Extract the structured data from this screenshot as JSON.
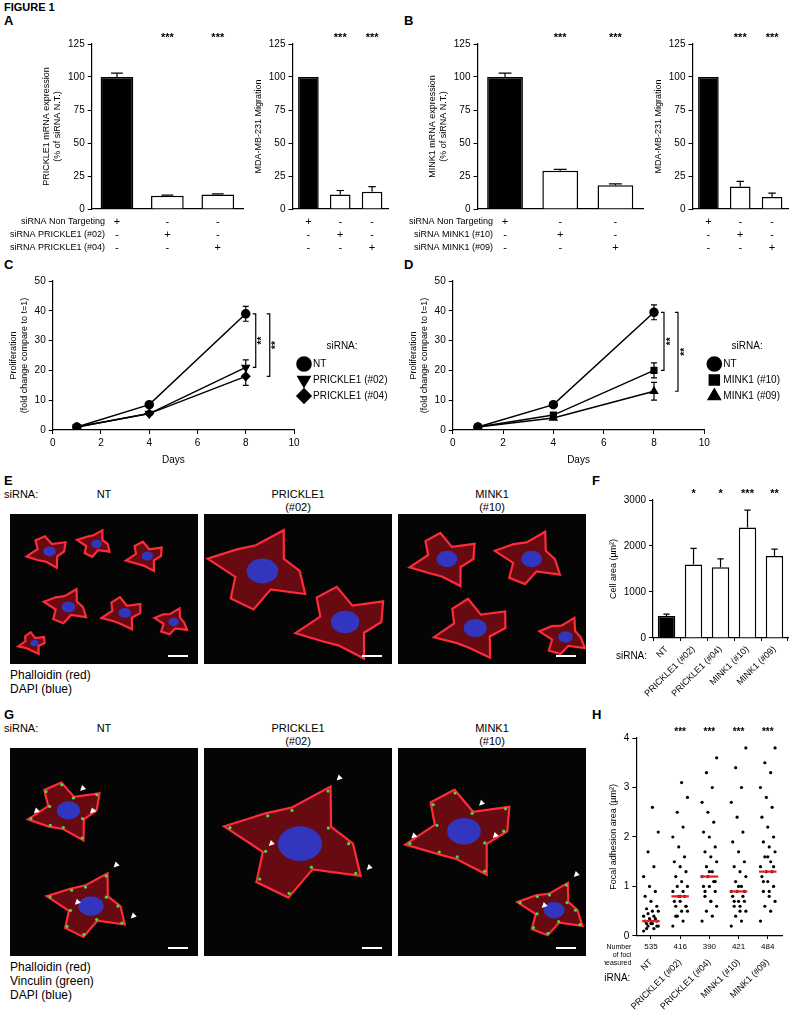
{
  "title": "FIGURE 1",
  "chart_data": [
    {
      "panel": "A",
      "type": "bar",
      "y_label": [
        "PRICKLE1 mRNA expression",
        "(% of siRNA N.T.)"
      ],
      "categories": [
        null,
        null,
        null
      ],
      "values": [
        100,
        10,
        11
      ],
      "errors": [
        3,
        0.5,
        0.5
      ],
      "colors": [
        "#000000",
        "#ffffff",
        "#ffffff"
      ],
      "ylim": [
        0,
        125
      ],
      "yticks": [
        0,
        25,
        50,
        75,
        100,
        125
      ],
      "grid": false,
      "tick_labels": "y",
      "significance": [
        null,
        "***",
        "***"
      ],
      "condition_table": {
        "rows": [
          {
            "label": "siRNA Non Targeting",
            "marks": [
              "+",
              "-",
              "-"
            ]
          },
          {
            "label": "siRNA PRICKLE1 (#02)",
            "marks": [
              "-",
              "+",
              "-"
            ]
          },
          {
            "label": "siRNA PRICKLE1 (#04)",
            "marks": [
              "-",
              "-",
              "+"
            ]
          }
        ]
      }
    },
    {
      "panel": "A",
      "type": "bar",
      "y_label": "MDA-MB-231 Migration",
      "categories": [
        null,
        null,
        null
      ],
      "values": [
        100,
        11,
        13
      ],
      "errors": [
        0,
        3,
        4
      ],
      "colors": [
        "#000000",
        "#ffffff",
        "#ffffff"
      ],
      "ylim": [
        0,
        125
      ],
      "yticks": [
        0,
        25,
        50,
        75,
        100,
        125
      ],
      "grid": false,
      "tick_labels": "y",
      "significance": [
        null,
        "***",
        "***"
      ],
      "condition_table": {
        "rows": [
          {
            "label": null,
            "marks": [
              "+",
              "-",
              "-"
            ]
          },
          {
            "label": null,
            "marks": [
              "-",
              "+",
              "-"
            ]
          },
          {
            "label": null,
            "marks": [
              "-",
              "-",
              "+"
            ]
          }
        ]
      }
    },
    {
      "panel": "B",
      "type": "bar",
      "y_label": [
        "MINK1 mRNA expression",
        "(% of siRNA N.T.)"
      ],
      "categories": [
        null,
        null,
        null
      ],
      "values": [
        100,
        29,
        18
      ],
      "errors": [
        3,
        1,
        1
      ],
      "colors": [
        "#000000",
        "#ffffff",
        "#ffffff"
      ],
      "ylim": [
        0,
        125
      ],
      "yticks": [
        0,
        25,
        50,
        75,
        100,
        125
      ],
      "grid": false,
      "tick_labels": "y",
      "significance": [
        null,
        "***",
        "***"
      ],
      "condition_table": {
        "rows": [
          {
            "label": "siRNA Non Targeting",
            "marks": [
              "+",
              "-",
              "-"
            ]
          },
          {
            "label": "siRNA MINK1 (#10)",
            "marks": [
              "-",
              "+",
              "-"
            ]
          },
          {
            "label": "siRNA MINK1 (#09)",
            "marks": [
              "-",
              "-",
              "+"
            ]
          }
        ]
      }
    },
    {
      "panel": "B",
      "type": "bar",
      "y_label": "MDA-MB-231 Migration",
      "categories": [
        null,
        null,
        null
      ],
      "values": [
        100,
        17,
        9
      ],
      "errors": [
        0,
        4,
        3
      ],
      "colors": [
        "#000000",
        "#ffffff",
        "#ffffff"
      ],
      "ylim": [
        0,
        125
      ],
      "yticks": [
        0,
        25,
        50,
        75,
        100,
        125
      ],
      "grid": false,
      "tick_labels": "y",
      "significance": [
        null,
        "***",
        "***"
      ],
      "condition_table": {
        "rows": [
          {
            "label": null,
            "marks": [
              "+",
              "-",
              "-"
            ]
          },
          {
            "label": null,
            "marks": [
              "-",
              "+",
              "-"
            ]
          },
          {
            "label": null,
            "marks": [
              "-",
              "-",
              "+"
            ]
          }
        ]
      }
    },
    {
      "panel": "C",
      "type": "line",
      "x_label": "Days",
      "y_label": [
        "Proliferation",
        "(fold change compare to t=1)"
      ],
      "x": [
        1,
        4,
        8
      ],
      "xlim": [
        0,
        10
      ],
      "xticks": [
        0,
        2,
        4,
        6,
        8,
        10
      ],
      "ylim": [
        0,
        50
      ],
      "yticks": [
        0,
        10,
        20,
        30,
        40,
        50
      ],
      "grid": false,
      "legend": "right",
      "legend_title": "siRNA:",
      "series": [
        {
          "name": "NT",
          "color": "#000000",
          "marker": "circle",
          "values": [
            1,
            8.5,
            39
          ],
          "errors": [
            0,
            0.5,
            2.5
          ]
        },
        {
          "name": "PRICKLE1 (#02)",
          "color": "#000000",
          "marker": "triangle-down",
          "values": [
            1,
            5.5,
            21
          ],
          "errors": [
            0,
            0.4,
            2.5
          ]
        },
        {
          "name": "PRICKLE1 (#04)",
          "color": "#000000",
          "marker": "diamond",
          "values": [
            1,
            5.5,
            18
          ],
          "errors": [
            0,
            0.4,
            3
          ]
        }
      ],
      "significance": [
        {
          "label": "**",
          "between": [
            "NT",
            "PRICKLE1 (#02)"
          ]
        },
        {
          "label": "**",
          "between": [
            "NT",
            "PRICKLE1 (#04)"
          ]
        }
      ]
    },
    {
      "panel": "D",
      "type": "line",
      "x_label": "Days",
      "y_label": [
        "Proliferation",
        "(fold change compare to t=1)"
      ],
      "x": [
        1,
        4,
        8
      ],
      "xlim": [
        0,
        10
      ],
      "xticks": [
        0,
        2,
        4,
        6,
        8,
        10
      ],
      "ylim": [
        0,
        50
      ],
      "yticks": [
        0,
        10,
        20,
        30,
        40,
        50
      ],
      "grid": false,
      "legend": "right",
      "legend_title": "siRNA:",
      "series": [
        {
          "name": "NT",
          "color": "#000000",
          "marker": "circle",
          "values": [
            1,
            8.5,
            39.5
          ],
          "errors": [
            0,
            0.5,
            2.5
          ]
        },
        {
          "name": "MINK1 (#10)",
          "color": "#000000",
          "marker": "square",
          "values": [
            1,
            5,
            20
          ],
          "errors": [
            0,
            0.4,
            2.5
          ]
        },
        {
          "name": "MINK1 (#09)",
          "color": "#000000",
          "marker": "triangle",
          "values": [
            1,
            4,
            13
          ],
          "errors": [
            0,
            0.4,
            3
          ]
        }
      ],
      "significance": [
        {
          "label": "**",
          "between": [
            "NT",
            "MINK1 (#10)"
          ]
        },
        {
          "label": "**",
          "between": [
            "NT",
            "MINK1 (#09)"
          ]
        }
      ]
    },
    {
      "panel": "F",
      "type": "bar",
      "x_label": "siRNA:",
      "y_label": "Cell area (µm²)",
      "categories": [
        "NT",
        "PRICKLE1 (#02)",
        "PRICKLE1 (#04)",
        "MINK1 (#10)",
        "MINK1 (#09)"
      ],
      "values": [
        480,
        1600,
        1540,
        2400,
        1780
      ],
      "errors": [
        40,
        350,
        180,
        380,
        150
      ],
      "colors": [
        "#000000",
        "#ffffff",
        "#ffffff",
        "#ffffff",
        "#ffffff"
      ],
      "ylim": [
        0,
        3000
      ],
      "yticks": [
        0,
        1000,
        2000,
        3000
      ],
      "grid": false,
      "significance": [
        null,
        "*",
        "*",
        "***",
        "**"
      ]
    },
    {
      "panel": "H",
      "type": "scatter",
      "x_label": "siRNA:",
      "y_label": "Focal adhesion area (µm²)",
      "categories": [
        "NT",
        "PRICKLE1 (#02)",
        "PRICKLE1 (#04)",
        "MINK1 (#10)",
        "MINK1 (#09)"
      ],
      "ylim": [
        0,
        4
      ],
      "yticks": [
        0,
        1,
        2,
        3,
        4
      ],
      "grid": false,
      "series": [
        {
          "type": "scatter",
          "color": "#000000",
          "values": [
            [
              0.1,
              0.15,
              0.2,
              0.2,
              0.25,
              0.25,
              0.3,
              0.3,
              0.3,
              0.35,
              0.35,
              0.4,
              0.4,
              0.45,
              0.5,
              0.5,
              0.55,
              0.6,
              0.7,
              0.8,
              0.9,
              1.0,
              1.2,
              1.4,
              1.7,
              2.1,
              2.6,
              0.15,
              0.2,
              0.25
            ],
            [
              0.2,
              0.3,
              0.4,
              0.5,
              0.5,
              0.6,
              0.6,
              0.7,
              0.7,
              0.8,
              0.8,
              0.9,
              0.9,
              1.0,
              1.0,
              1.1,
              1.2,
              1.3,
              1.4,
              1.5,
              1.6,
              1.8,
              2.0,
              2.2,
              2.5,
              2.8,
              3.1,
              0.4,
              0.6,
              0.8
            ],
            [
              0.3,
              0.4,
              0.5,
              0.6,
              0.7,
              0.8,
              0.9,
              1.0,
              1.0,
              1.1,
              1.2,
              1.2,
              1.3,
              1.4,
              1.5,
              1.6,
              1.7,
              1.8,
              2.0,
              2.1,
              2.3,
              2.5,
              2.7,
              3.0,
              3.3,
              3.6,
              0.7,
              0.9,
              1.1,
              1.3
            ],
            [
              0.2,
              0.3,
              0.4,
              0.5,
              0.6,
              0.6,
              0.7,
              0.7,
              0.8,
              0.8,
              0.9,
              0.9,
              1.0,
              1.1,
              1.2,
              1.3,
              1.4,
              1.5,
              1.7,
              1.9,
              2.1,
              2.4,
              2.7,
              3.0,
              3.4,
              3.8,
              0.5,
              0.7,
              0.9,
              1.0
            ],
            [
              0.3,
              0.5,
              0.6,
              0.7,
              0.8,
              0.9,
              1.0,
              1.1,
              1.2,
              1.3,
              1.3,
              1.4,
              1.5,
              1.6,
              1.7,
              1.8,
              1.9,
              2.0,
              2.2,
              2.4,
              2.6,
              2.8,
              3.0,
              3.3,
              3.5,
              3.8,
              0.9,
              1.1,
              1.4,
              1.6
            ]
          ]
        },
        {
          "type": "median",
          "color": "#e31e24",
          "values": [
            0.3,
            0.8,
            1.2,
            0.9,
            1.3
          ]
        }
      ],
      "significance": [
        null,
        "***",
        "***",
        "***",
        "***"
      ],
      "foci_label": "Number of foci measured",
      "foci_counts": [
        535,
        416,
        390,
        421,
        484
      ]
    }
  ],
  "images": [
    {
      "panel": "E",
      "row_label": "siRNA:",
      "columns": [
        "NT",
        "PRICKLE1 (#02)",
        "MINK1 (#10)"
      ],
      "stains": [
        "Phalloidin (red)",
        "DAPI (blue)"
      ]
    },
    {
      "panel": "G",
      "row_label": "siRNA:",
      "columns": [
        "NT",
        "PRICKLE1 (#02)",
        "MINK1 (#10)"
      ],
      "stains": [
        "Phalloidin (red)",
        "Vinculin (green)",
        "DAPI (blue)"
      ]
    }
  ]
}
